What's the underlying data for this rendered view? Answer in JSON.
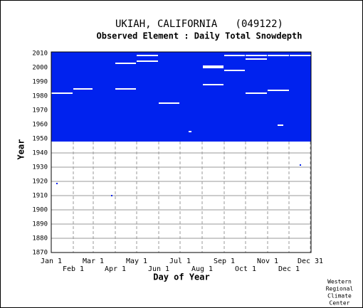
{
  "chart_data": {
    "type": "coverage",
    "title": "UKIAH, CALIFORNIA   (049122)",
    "subtitle": "Observed Element : Daily Total Snowdepth",
    "xlabel": "Day of Year",
    "ylabel": "Year",
    "credit": [
      "Western",
      "Regional",
      "Climate",
      "Center"
    ],
    "color": "#0022ee",
    "xlim": [
      1,
      366
    ],
    "ylim": [
      1870,
      2011
    ],
    "xticks": [
      {
        "value": 1,
        "label": "Jan 1"
      },
      {
        "value": 32,
        "label": "Feb 1"
      },
      {
        "value": 60,
        "label": "Mar 1"
      },
      {
        "value": 91,
        "label": "Apr 1"
      },
      {
        "value": 121,
        "label": "May 1"
      },
      {
        "value": 152,
        "label": "Jun 1"
      },
      {
        "value": 182,
        "label": "Jul 1"
      },
      {
        "value": 213,
        "label": "Aug 1"
      },
      {
        "value": 244,
        "label": "Sep 1"
      },
      {
        "value": 274,
        "label": "Oct 1"
      },
      {
        "value": 305,
        "label": "Nov 1"
      },
      {
        "value": 335,
        "label": "Dec 1"
      },
      {
        "value": 365,
        "label": "Dec 31"
      }
    ],
    "yticks": [
      1870,
      1880,
      1890,
      1900,
      1910,
      1920,
      1930,
      1940,
      1950,
      1960,
      1970,
      1980,
      1990,
      2000,
      2010
    ],
    "grid": true,
    "filled": {
      "x": [
        1,
        366
      ],
      "y": [
        1948,
        2011
      ]
    },
    "missing": [
      [
        1,
        31,
        1982
      ],
      [
        32,
        59,
        1985
      ],
      [
        91,
        120,
        2003
      ],
      [
        121,
        151,
        2004.5
      ],
      [
        121,
        151,
        2008.5
      ],
      [
        91,
        120,
        1985
      ],
      [
        152,
        181,
        1975
      ],
      [
        214,
        243,
        2000
      ],
      [
        214,
        243,
        2001
      ],
      [
        214,
        243,
        1988
      ],
      [
        244,
        273,
        1998
      ],
      [
        244,
        273,
        2008.5
      ],
      [
        274,
        304,
        2008.5
      ],
      [
        305,
        335,
        2008.5
      ],
      [
        336,
        366,
        2008.5
      ],
      [
        274,
        304,
        2006
      ],
      [
        274,
        304,
        1982
      ],
      [
        305,
        335,
        1984
      ],
      [
        319,
        327,
        1959.5
      ],
      [
        194,
        198,
        1955
      ]
    ],
    "points": [
      [
        9,
        1918.5
      ],
      [
        86,
        1910
      ],
      [
        351,
        1931.5
      ]
    ]
  }
}
